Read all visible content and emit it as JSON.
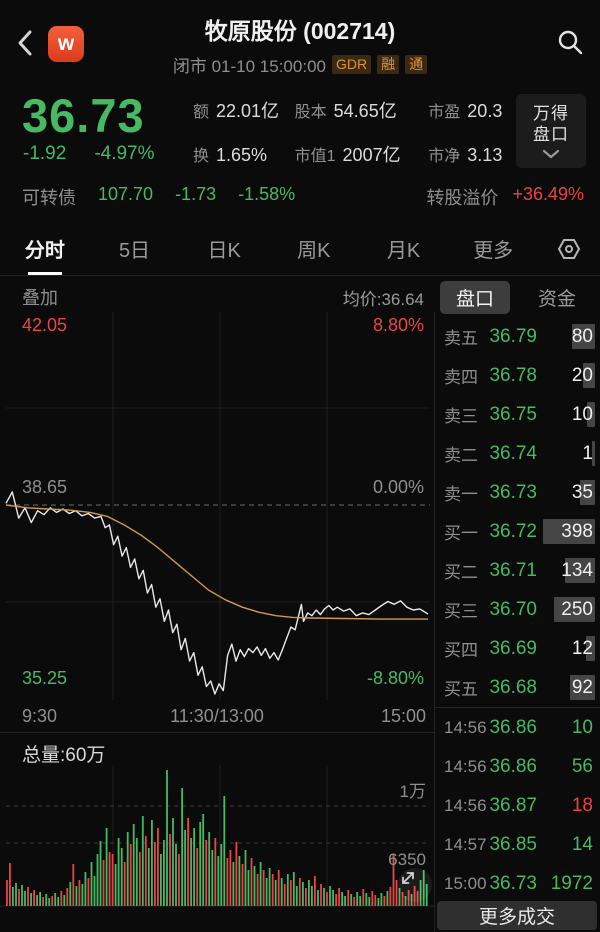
{
  "app": {
    "logo": "w",
    "title": "牧原股份 (002714)",
    "status": "闭市 01-10 15:00:00",
    "badges": [
      "GDR",
      "融",
      "通"
    ]
  },
  "quote": {
    "price": "36.73",
    "change": "-1.92",
    "change_pct": "-4.97%",
    "stats": [
      {
        "label": "额",
        "value": "22.01亿"
      },
      {
        "label": "股本",
        "value": "54.65亿"
      },
      {
        "label": "市盈",
        "value": "20.3"
      },
      {
        "label": "换",
        "value": "1.65%"
      },
      {
        "label": "市值1",
        "value": "2007亿"
      },
      {
        "label": "市净",
        "value": "3.13"
      }
    ],
    "pankou_button": {
      "line1": "万得",
      "line2": "盘口"
    }
  },
  "bond": {
    "label": "可转债",
    "price": "107.70",
    "change": "-1.73",
    "change_pct": "-1.58%",
    "premium_label": "转股溢价",
    "premium_value": "+36.49%"
  },
  "period_tabs": {
    "items": [
      "分时",
      "5日",
      "日K",
      "周K",
      "月K",
      "更多"
    ],
    "active": "分时"
  },
  "chart_header": {
    "overlay_label": "叠加",
    "avg_label": "均价:36.64",
    "panel_tabs": [
      "盘口",
      "资金"
    ],
    "active_panel_tab": "盘口"
  },
  "chart_data": {
    "type": "line",
    "title": "分时图 牧原股份",
    "prev_close": 38.65,
    "y_axis": {
      "high": "42.05",
      "high_pct": "8.80%",
      "mid": "38.65",
      "mid_pct": "0.00%",
      "low": "35.25",
      "low_pct": "-8.80%"
    },
    "ylim": [
      35.25,
      42.05
    ],
    "x_ticks": [
      "9:30",
      "11:30/13:00",
      "15:00"
    ],
    "grid": true,
    "series": [
      {
        "name": "price",
        "color": "#e9e9e9",
        "points": [
          [
            0.0,
            38.68
          ],
          [
            0.015,
            38.88
          ],
          [
            0.03,
            38.42
          ],
          [
            0.045,
            38.6
          ],
          [
            0.06,
            38.34
          ],
          [
            0.075,
            38.55
          ],
          [
            0.09,
            38.48
          ],
          [
            0.105,
            38.6
          ],
          [
            0.12,
            38.52
          ],
          [
            0.135,
            38.58
          ],
          [
            0.15,
            38.5
          ],
          [
            0.165,
            38.55
          ],
          [
            0.18,
            38.46
          ],
          [
            0.195,
            38.5
          ],
          [
            0.21,
            38.42
          ],
          [
            0.225,
            38.45
          ],
          [
            0.235,
            38.25
          ],
          [
            0.245,
            38.3
          ],
          [
            0.255,
            37.95
          ],
          [
            0.265,
            38.1
          ],
          [
            0.275,
            37.75
          ],
          [
            0.285,
            37.9
          ],
          [
            0.295,
            37.55
          ],
          [
            0.305,
            37.7
          ],
          [
            0.315,
            37.35
          ],
          [
            0.325,
            37.5
          ],
          [
            0.335,
            37.1
          ],
          [
            0.345,
            37.25
          ],
          [
            0.355,
            36.85
          ],
          [
            0.365,
            37.0
          ],
          [
            0.375,
            36.6
          ],
          [
            0.385,
            36.8
          ],
          [
            0.395,
            36.4
          ],
          [
            0.405,
            36.55
          ],
          [
            0.415,
            36.1
          ],
          [
            0.425,
            36.3
          ],
          [
            0.435,
            35.9
          ],
          [
            0.445,
            36.05
          ],
          [
            0.455,
            35.65
          ],
          [
            0.465,
            35.8
          ],
          [
            0.475,
            35.45
          ],
          [
            0.485,
            35.55
          ],
          [
            0.495,
            35.32
          ],
          [
            0.505,
            35.5
          ],
          [
            0.515,
            35.38
          ],
          [
            0.525,
            36.0
          ],
          [
            0.535,
            36.2
          ],
          [
            0.545,
            35.9
          ],
          [
            0.555,
            36.1
          ],
          [
            0.565,
            35.98
          ],
          [
            0.575,
            36.12
          ],
          [
            0.585,
            36.05
          ],
          [
            0.595,
            36.15
          ],
          [
            0.605,
            36.0
          ],
          [
            0.615,
            36.12
          ],
          [
            0.625,
            35.95
          ],
          [
            0.635,
            36.05
          ],
          [
            0.645,
            35.92
          ],
          [
            0.655,
            36.1
          ],
          [
            0.665,
            36.3
          ],
          [
            0.675,
            36.5
          ],
          [
            0.685,
            36.45
          ],
          [
            0.695,
            36.75
          ],
          [
            0.7,
            36.9
          ],
          [
            0.705,
            36.6
          ],
          [
            0.715,
            36.75
          ],
          [
            0.725,
            36.7
          ],
          [
            0.735,
            36.8
          ],
          [
            0.745,
            36.72
          ],
          [
            0.755,
            36.82
          ],
          [
            0.765,
            36.88
          ],
          [
            0.775,
            36.8
          ],
          [
            0.785,
            36.85
          ],
          [
            0.8,
            36.78
          ],
          [
            0.815,
            36.82
          ],
          [
            0.83,
            36.7
          ],
          [
            0.845,
            36.75
          ],
          [
            0.86,
            36.72
          ],
          [
            0.875,
            36.8
          ],
          [
            0.89,
            36.88
          ],
          [
            0.905,
            36.95
          ],
          [
            0.92,
            36.9
          ],
          [
            0.935,
            36.96
          ],
          [
            0.95,
            36.85
          ],
          [
            0.965,
            36.8
          ],
          [
            0.98,
            36.82
          ],
          [
            1.0,
            36.73
          ]
        ]
      },
      {
        "name": "avg",
        "color": "#cf9a4e",
        "points": [
          [
            0.0,
            38.65
          ],
          [
            0.05,
            38.6
          ],
          [
            0.1,
            38.58
          ],
          [
            0.15,
            38.56
          ],
          [
            0.2,
            38.52
          ],
          [
            0.24,
            38.45
          ],
          [
            0.28,
            38.3
          ],
          [
            0.32,
            38.12
          ],
          [
            0.36,
            37.9
          ],
          [
            0.4,
            37.65
          ],
          [
            0.44,
            37.4
          ],
          [
            0.48,
            37.15
          ],
          [
            0.52,
            36.98
          ],
          [
            0.56,
            36.85
          ],
          [
            0.6,
            36.76
          ],
          [
            0.64,
            36.7
          ],
          [
            0.68,
            36.67
          ],
          [
            0.72,
            36.66
          ],
          [
            0.8,
            36.65
          ],
          [
            0.9,
            36.64
          ],
          [
            1.0,
            36.64
          ]
        ]
      }
    ],
    "volume": {
      "total_label": "总量:60万",
      "scale_labels": [
        "1万",
        "6350"
      ],
      "bars": [
        [
          2600,
          1
        ],
        [
          4300,
          1
        ],
        [
          1900,
          0
        ],
        [
          2300,
          0
        ],
        [
          1700,
          1
        ],
        [
          2100,
          0
        ],
        [
          1500,
          0
        ],
        [
          1900,
          1
        ],
        [
          1300,
          0
        ],
        [
          1600,
          1
        ],
        [
          1100,
          0
        ],
        [
          1400,
          0
        ],
        [
          900,
          1
        ],
        [
          1200,
          0
        ],
        [
          800,
          0
        ],
        [
          1000,
          1
        ],
        [
          1300,
          0
        ],
        [
          900,
          0
        ],
        [
          1500,
          1
        ],
        [
          1100,
          0
        ],
        [
          1800,
          1
        ],
        [
          2400,
          0
        ],
        [
          4200,
          1
        ],
        [
          2000,
          0
        ],
        [
          2600,
          1
        ],
        [
          2200,
          0
        ],
        [
          3400,
          0
        ],
        [
          2800,
          1
        ],
        [
          4400,
          0
        ],
        [
          3000,
          0
        ],
        [
          5200,
          0
        ],
        [
          6500,
          0
        ],
        [
          4600,
          1
        ],
        [
          7800,
          0
        ],
        [
          5400,
          1
        ],
        [
          5200,
          1
        ],
        [
          4200,
          0
        ],
        [
          6800,
          0
        ],
        [
          5800,
          0
        ],
        [
          4400,
          1
        ],
        [
          7400,
          0
        ],
        [
          6200,
          1
        ],
        [
          8200,
          0
        ],
        [
          6800,
          0
        ],
        [
          5400,
          1
        ],
        [
          9000,
          0
        ],
        [
          7000,
          1
        ],
        [
          5800,
          0
        ],
        [
          8600,
          0
        ],
        [
          6400,
          1
        ],
        [
          7800,
          1
        ],
        [
          5200,
          0
        ],
        [
          6600,
          0
        ],
        [
          13600,
          0
        ],
        [
          7200,
          1
        ],
        [
          8800,
          0
        ],
        [
          6200,
          0
        ],
        [
          5200,
          1
        ],
        [
          11800,
          0
        ],
        [
          7600,
          0
        ],
        [
          8800,
          1
        ],
        [
          6800,
          0
        ],
        [
          7800,
          0
        ],
        [
          5800,
          1
        ],
        [
          8400,
          0
        ],
        [
          9200,
          0
        ],
        [
          6600,
          1
        ],
        [
          7400,
          0
        ],
        [
          5600,
          0
        ],
        [
          6800,
          1
        ],
        [
          5000,
          0
        ],
        [
          6200,
          0
        ],
        [
          11000,
          0
        ],
        [
          4800,
          1
        ],
        [
          5600,
          1
        ],
        [
          4400,
          0
        ],
        [
          6400,
          1
        ],
        [
          5000,
          0
        ],
        [
          4200,
          1
        ],
        [
          5600,
          0
        ],
        [
          3600,
          0
        ],
        [
          4800,
          1
        ],
        [
          4000,
          0
        ],
        [
          3200,
          1
        ],
        [
          4400,
          0
        ],
        [
          3600,
          1
        ],
        [
          2800,
          0
        ],
        [
          3800,
          0
        ],
        [
          3200,
          1
        ],
        [
          2600,
          0
        ],
        [
          3600,
          1
        ],
        [
          2800,
          0
        ],
        [
          2200,
          1
        ],
        [
          3200,
          0
        ],
        [
          2600,
          1
        ],
        [
          3400,
          0
        ],
        [
          2000,
          0
        ],
        [
          2800,
          1
        ],
        [
          2400,
          0
        ],
        [
          1800,
          1
        ],
        [
          2600,
          0
        ],
        [
          2000,
          0
        ],
        [
          3000,
          1
        ],
        [
          1600,
          0
        ],
        [
          2200,
          1
        ],
        [
          1800,
          0
        ],
        [
          1400,
          1
        ],
        [
          2000,
          0
        ],
        [
          1600,
          0
        ],
        [
          1200,
          1
        ],
        [
          1800,
          1
        ],
        [
          1400,
          0
        ],
        [
          1000,
          0
        ],
        [
          1600,
          1
        ],
        [
          1200,
          0
        ],
        [
          900,
          1
        ],
        [
          1400,
          0
        ],
        [
          1000,
          0
        ],
        [
          1700,
          1
        ],
        [
          1300,
          0
        ],
        [
          900,
          0
        ],
        [
          1500,
          1
        ],
        [
          1100,
          1
        ],
        [
          800,
          0
        ],
        [
          1300,
          0
        ],
        [
          1000,
          1
        ],
        [
          1500,
          0
        ],
        [
          1900,
          1
        ],
        [
          5200,
          1
        ],
        [
          2600,
          1
        ],
        [
          1800,
          0
        ],
        [
          1400,
          1
        ],
        [
          1000,
          0
        ],
        [
          1600,
          1
        ],
        [
          1200,
          0
        ],
        [
          2000,
          1
        ],
        [
          1500,
          1
        ],
        [
          2600,
          0
        ],
        [
          3600,
          0
        ],
        [
          2200,
          0
        ]
      ]
    }
  },
  "orderbook": {
    "sells": [
      {
        "label": "卖五",
        "price": "36.79",
        "qty": "80"
      },
      {
        "label": "卖四",
        "price": "36.78",
        "qty": "20"
      },
      {
        "label": "卖三",
        "price": "36.75",
        "qty": "10"
      },
      {
        "label": "卖二",
        "price": "36.74",
        "qty": "1"
      },
      {
        "label": "卖一",
        "price": "36.73",
        "qty": "35"
      }
    ],
    "buys": [
      {
        "label": "买一",
        "price": "36.72",
        "qty": "398"
      },
      {
        "label": "买二",
        "price": "36.71",
        "qty": "134"
      },
      {
        "label": "买三",
        "price": "36.70",
        "qty": "250"
      },
      {
        "label": "买四",
        "price": "36.69",
        "qty": "12"
      },
      {
        "label": "买五",
        "price": "36.68",
        "qty": "92"
      }
    ]
  },
  "ticks": [
    {
      "time": "14:56",
      "price": "36.86",
      "qty": "10",
      "dir": "g"
    },
    {
      "time": "14:56",
      "price": "36.86",
      "qty": "56",
      "dir": "g"
    },
    {
      "time": "14:56",
      "price": "36.87",
      "qty": "18",
      "dir": "r"
    },
    {
      "time": "14:57",
      "price": "36.85",
      "qty": "14",
      "dir": "g"
    },
    {
      "time": "15:00",
      "price": "36.73",
      "qty": "1972",
      "dir": "g"
    }
  ],
  "more_trades_label": "更多成交",
  "colors": {
    "green": "#46ba63",
    "red": "#ea4444",
    "orange": "#cf9a4e",
    "gray": "#8f8f8f"
  }
}
